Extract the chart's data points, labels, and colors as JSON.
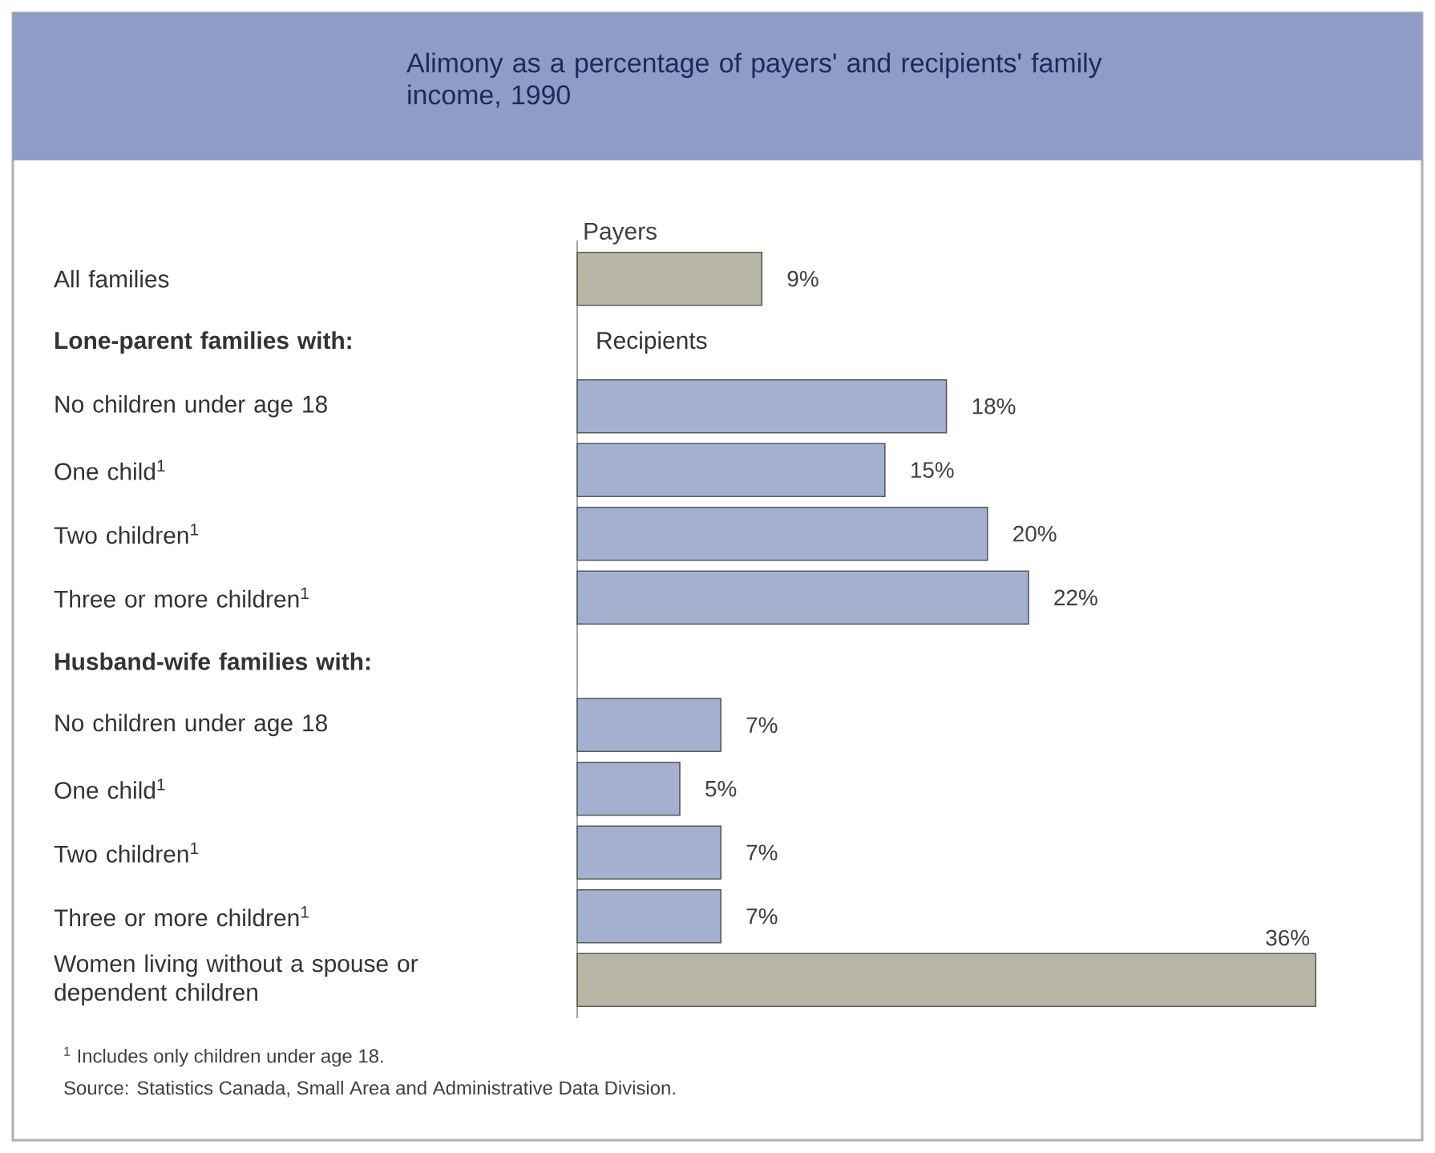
{
  "chart_data": {
    "type": "bar",
    "orientation": "horizontal",
    "title": "Alimony as a percentage of payers' and recipients' family income, 1990",
    "categories": [
      "All families",
      "**Lone-parent families with:**",
      "No children under age 18",
      "One child$^{1}$",
      "Two children$^{1}$",
      "Three or more children$^{1}$",
      "**Husband-wife families with:**",
      "No children under age 18",
      "One child$^{1}$",
      "Two children$^{1}$",
      "Three or more children$^{1}$",
      "Women living without a spouse or dependent children"
    ],
    "values": [
      9,
      null,
      18,
      15,
      20,
      22,
      null,
      7,
      5,
      7,
      7,
      36
    ],
    "value_labels": [
      "9%",
      null,
      "18%",
      "15%",
      "20%",
      "22%",
      null,
      "7%",
      "5%",
      "7%",
      "7%",
      "36%"
    ],
    "colors": [
      "#b8b7a6",
      null,
      "#a4b0cf",
      "#a4b0cf",
      "#a4b0cf",
      "#a4b0cf",
      null,
      "#a4b0cf",
      "#a4b0cf",
      "#a4b0cf",
      "#a4b0cf",
      "#b8b7a6"
    ],
    "annotations": [
      "Payers",
      "Recipients",
      "$^{1}$ Includes only children under age 18.",
      "Source: Statistics Canada, Small Area and Administrative Data Division."
    ]
  }
}
